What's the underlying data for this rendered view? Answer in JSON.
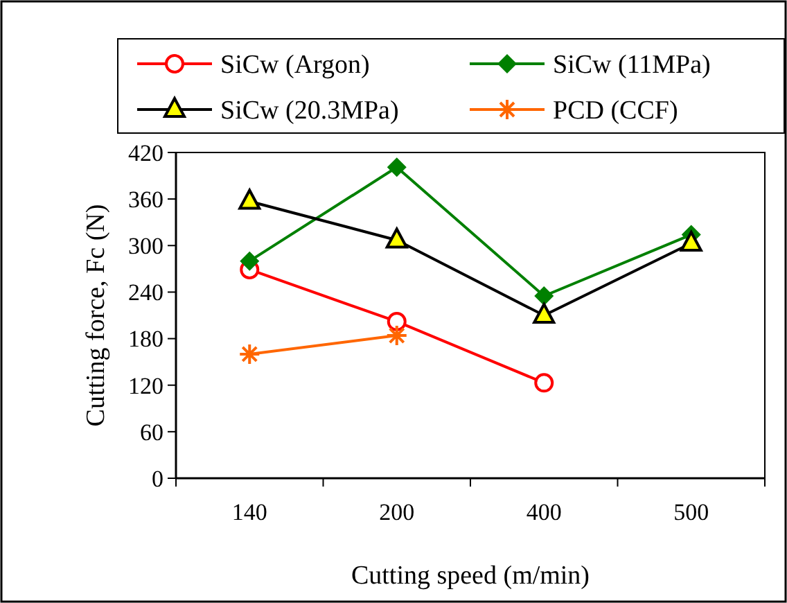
{
  "chart_data": {
    "type": "line",
    "xlabel": "Cutting speed (m/min)",
    "ylabel": "Cutting force, Fc (N)",
    "categories": [
      "140",
      "200",
      "400",
      "500"
    ],
    "ylim": [
      0,
      420
    ],
    "yticks": [
      0,
      60,
      120,
      180,
      240,
      300,
      360,
      420
    ],
    "grid": false,
    "legend": "top",
    "series": [
      {
        "name": "SiCw (Argon)",
        "color": "#ff0000",
        "marker": "circle",
        "values": [
          269,
          202,
          123,
          null
        ]
      },
      {
        "name": "SiCw (11MPa)",
        "color": "#008000",
        "marker": "diamond",
        "values": [
          280,
          401,
          235,
          314
        ]
      },
      {
        "name": "SiCw (20.3MPa)",
        "color": "#000000",
        "marker": "triangle",
        "values": [
          357,
          307,
          210,
          303
        ]
      },
      {
        "name": "PCD (CCF)",
        "color": "#ff6600",
        "marker": "cross",
        "values": [
          160,
          184,
          null,
          null
        ]
      }
    ]
  }
}
